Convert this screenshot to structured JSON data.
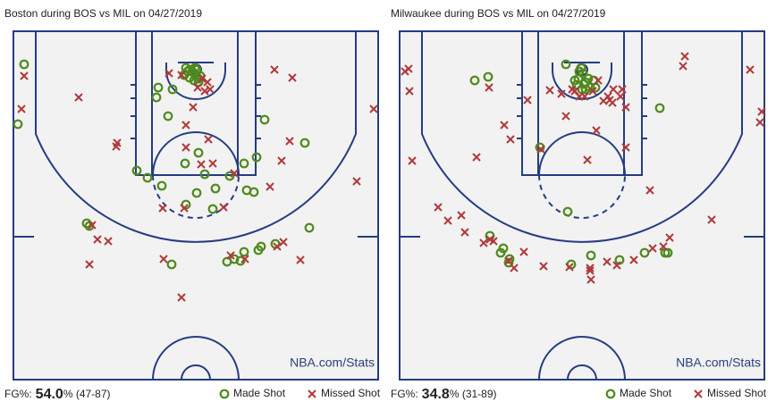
{
  "chart_data": [
    {
      "type": "scatter",
      "title": "Boston during BOS vs MIL on 04/27/2019",
      "watermark": "NBA.com/Stats",
      "fg_label": "FG%:",
      "fg_value": "54.0",
      "fg_detail": "% (47-87)",
      "xlim": [
        -204,
        204
      ],
      "ylim": [
        -43,
        347
      ],
      "series": [
        {
          "name": "Made Shot",
          "color": "#4e8a1c",
          "marker": "circle",
          "x": [
            -192,
            -199,
            -11,
            -7,
            -4,
            -1,
            3,
            -13,
            -42,
            -44,
            -26,
            -31,
            77,
            122,
            3,
            -12,
            -66,
            -54,
            -38,
            10,
            22,
            1,
            38,
            54,
            68,
            57,
            65,
            -11,
            19,
            -122,
            -119,
            127,
            54,
            70,
            73,
            89,
            43,
            35,
            50,
            -27,
            -1,
            -7,
            5,
            3,
            -2,
            -9,
            1
          ],
          "values": [
            -6,
            61,
            -2,
            0,
            2,
            5,
            10,
            6,
            20,
            31,
            22,
            52,
            56,
            82,
            93,
            105,
            113,
            121,
            130,
            117,
            133,
            138,
            119,
            105,
            98,
            135,
            137,
            151,
            156,
            172,
            175,
            177,
            204,
            202,
            198,
            195,
            212,
            215,
            214,
            218,
            -2,
            9,
            7,
            14,
            12,
            2,
            0
          ]
        },
        {
          "name": "Missed Shot",
          "color": "#b0393b",
          "marker": "x",
          "x": [
            -192,
            -195,
            -131,
            -30,
            -16,
            2,
            10,
            13,
            7,
            88,
            108,
            199,
            -3,
            -88,
            -89,
            -11,
            14,
            105,
            96,
            19,
            6,
            43,
            83,
            180,
            -37,
            -13,
            31,
            -116,
            -110,
            -98,
            -119,
            -36,
            98,
            91,
            39,
            55,
            117,
            -16,
            -11,
            16
          ],
          "values": [
            7,
            44,
            31,
            4,
            6,
            20,
            24,
            14,
            10,
            0,
            9,
            44,
            42,
            82,
            86,
            87,
            78,
            80,
            102,
            105,
            106,
            116,
            131,
            125,
            155,
            155,
            154,
            174,
            190,
            192,
            218,
            212,
            193,
            198,
            208,
            212,
            213,
            255,
            62,
            22
          ]
        }
      ]
    },
    {
      "type": "scatter",
      "title": "Milwaukee during BOS vs MIL on 04/27/2019",
      "watermark": "NBA.com/Stats",
      "fg_label": "FG%:",
      "fg_value": "34.8",
      "fg_detail": "% (31-89)",
      "xlim": [
        -204,
        204
      ],
      "ylim": [
        -43,
        347
      ],
      "series": [
        {
          "name": "Made Shot",
          "color": "#4e8a1c",
          "marker": "circle",
          "x": [
            -18,
            -1,
            1,
            -4,
            4,
            9,
            0,
            -6,
            13,
            -120,
            -105,
            87,
            -47,
            -16,
            -103,
            -88,
            -91,
            -81,
            -82,
            -12,
            10,
            42,
            70,
            93,
            96,
            4,
            -3,
            7,
            -8,
            15,
            2
          ],
          "values": [
            -6,
            -2,
            4,
            10,
            14,
            20,
            22,
            17,
            12,
            12,
            8,
            43,
            87,
            159,
            186,
            200,
            205,
            212,
            216,
            218,
            208,
            213,
            205,
            205,
            205,
            22,
            2,
            10,
            12,
            20,
            16
          ]
        },
        {
          "name": "Missed Shot",
          "color": "#b0393b",
          "marker": "x",
          "x": [
            -198,
            -194,
            -193,
            115,
            113,
            188,
            201,
            199,
            -104,
            -36,
            -8,
            -3,
            18,
            31,
            35,
            43,
            45,
            -18,
            -87,
            -80,
            16,
            49,
            -118,
            -190,
            -46,
            6,
            76,
            145,
            -161,
            -135,
            -150,
            -110,
            -99,
            -103,
            -65,
            -43,
            -14,
            9,
            10,
            9,
            28,
            39,
            58,
            79,
            98,
            -82,
            24,
            -23,
            29,
            12,
            -11,
            3,
            34,
            -76,
            91,
            -61,
            49,
            -131
          ],
          "values": [
            2,
            -1,
            24,
            -15,
            -4,
            0,
            47,
            59,
            20,
            23,
            24,
            30,
            12,
            34,
            22,
            30,
            22,
            52,
            62,
            78,
            68,
            87,
            98,
            102,
            89,
            101,
            135,
            168,
            154,
            163,
            169,
            194,
            192,
            190,
            204,
            220,
            221,
            222,
            235,
            225,
            215,
            219,
            213,
            200,
            188,
            214,
            35,
            27,
            30,
            24,
            22,
            30,
            37,
            222,
            198,
            34,
            42,
            182
          ]
        }
      ]
    }
  ]
}
